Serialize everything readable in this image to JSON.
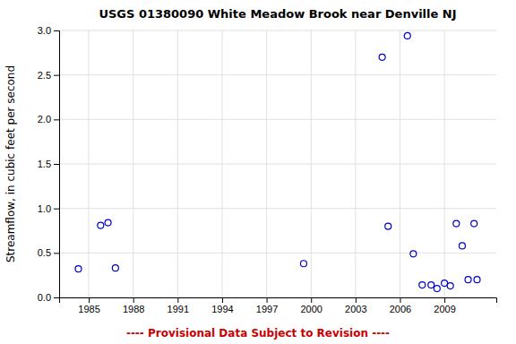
{
  "chart_data": {
    "type": "scatter",
    "title": "USGS 01380090 White Meadow Brook near Denville NJ",
    "ylabel": "Streamflow, in cubic feet per second",
    "annotations": [
      {
        "text": "---- Provisional Data Subject to Revision ----",
        "color": "#cc0000"
      }
    ],
    "x": [
      1984.3,
      1985.8,
      1986.3,
      1986.8,
      1999.5,
      2004.8,
      2005.2,
      2006.5,
      2006.9,
      2007.5,
      2008.1,
      2008.5,
      2009.0,
      2009.4,
      2009.8,
      2010.2,
      2010.6,
      2011.0,
      2011.2
    ],
    "values": [
      0.32,
      0.81,
      0.84,
      0.33,
      0.38,
      2.7,
      0.8,
      2.94,
      0.49,
      0.14,
      0.14,
      0.1,
      0.16,
      0.13,
      0.83,
      0.58,
      0.2,
      0.83,
      0.2
    ],
    "color": "#0000cc",
    "marker": "open-circle",
    "xlim": [
      1983,
      2012.5
    ],
    "ylim": [
      0.0,
      3.0
    ],
    "xticks": [
      1985,
      1988,
      1991,
      1994,
      1997,
      2000,
      2003,
      2006,
      2009
    ],
    "yticks": [
      {
        "value": 0.0,
        "label": "0.0"
      },
      0.5,
      {
        "value": 1.0,
        "label": "1.0"
      },
      1.5,
      {
        "value": 2.0,
        "label": "2.0"
      },
      2.5,
      {
        "value": 3.0,
        "label": "3.0"
      }
    ],
    "grid": true
  }
}
